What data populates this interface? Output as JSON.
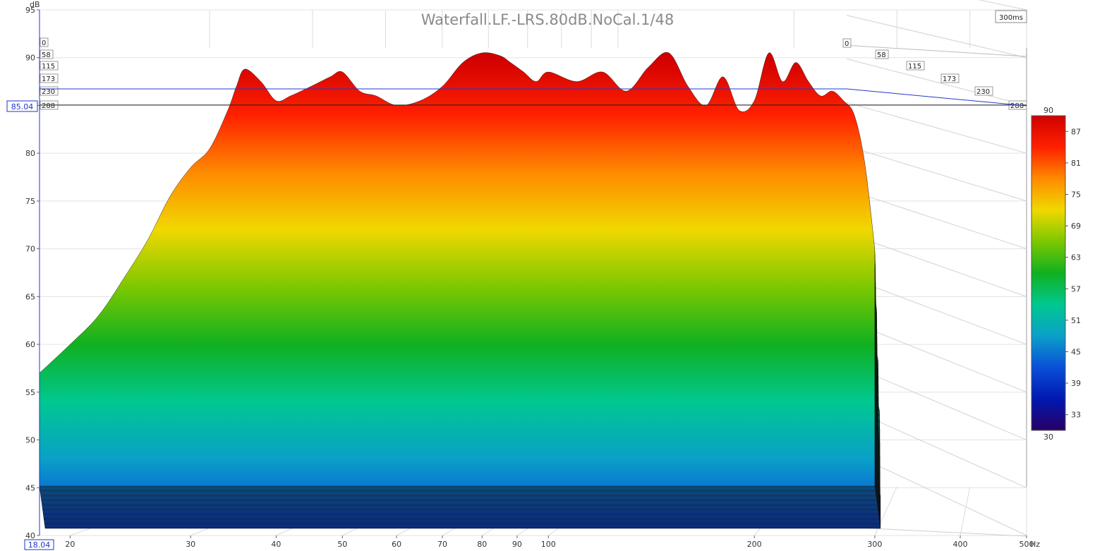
{
  "chart_data": {
    "type": "area",
    "title": "Waterfall.LF.-LRS.80dB.NoCal.1/48",
    "ylabel": "dB",
    "xlabel": "Hz",
    "time_span_label": "300ms",
    "x_scale": "log",
    "xlim": [
      18.04,
      500
    ],
    "ylim": [
      40,
      95
    ],
    "x_ticks": [
      20,
      30,
      40,
      50,
      60,
      70,
      80,
      90,
      100,
      200,
      300,
      400,
      500
    ],
    "y_ticks": [
      40,
      45,
      50,
      55,
      60,
      65,
      70,
      75,
      80,
      85,
      90,
      95
    ],
    "time_ticks_ms": [
      0,
      58,
      115,
      173,
      230,
      288
    ],
    "cursor": {
      "frequency_label": "18.04",
      "level_label": "85.04"
    },
    "colorbar": {
      "min": 30,
      "max": 90,
      "ticks": [
        33,
        39,
        45,
        51,
        57,
        63,
        69,
        75,
        81,
        87
      ],
      "stops": [
        "#2a0066",
        "#0018b0",
        "#0a4fd8",
        "#0aa0c8",
        "#00c890",
        "#10b020",
        "#7cc800",
        "#f0d800",
        "#ff8a00",
        "#ff2000",
        "#d00000"
      ]
    },
    "series": [
      {
        "time_ms": 0,
        "freq_hz": [
          18.04,
          20,
          22,
          24,
          26,
          28,
          30,
          32,
          34,
          35,
          36,
          38,
          40,
          42,
          45,
          48,
          50,
          53,
          56,
          60,
          65,
          70,
          75,
          80,
          85,
          88,
          92,
          96,
          100,
          110,
          120,
          130,
          140,
          150,
          160,
          170,
          180,
          190,
          200,
          210,
          220,
          230,
          240,
          250,
          260,
          270,
          280,
          290,
          300
        ],
        "level_db": [
          57,
          60,
          63,
          67,
          71,
          75.5,
          78.5,
          80.5,
          84.5,
          87,
          88.8,
          87.5,
          85.5,
          86,
          87,
          88,
          88.5,
          86.5,
          86,
          85,
          85.5,
          87,
          89.5,
          90.5,
          90.2,
          89.5,
          88.5,
          87.5,
          88.5,
          87.5,
          88.5,
          86.5,
          89,
          90.5,
          87,
          85,
          88,
          84.5,
          85.5,
          90.5,
          87.5,
          89.5,
          87.5,
          86,
          86.5,
          85.5,
          84,
          79,
          70
        ]
      }
    ]
  }
}
